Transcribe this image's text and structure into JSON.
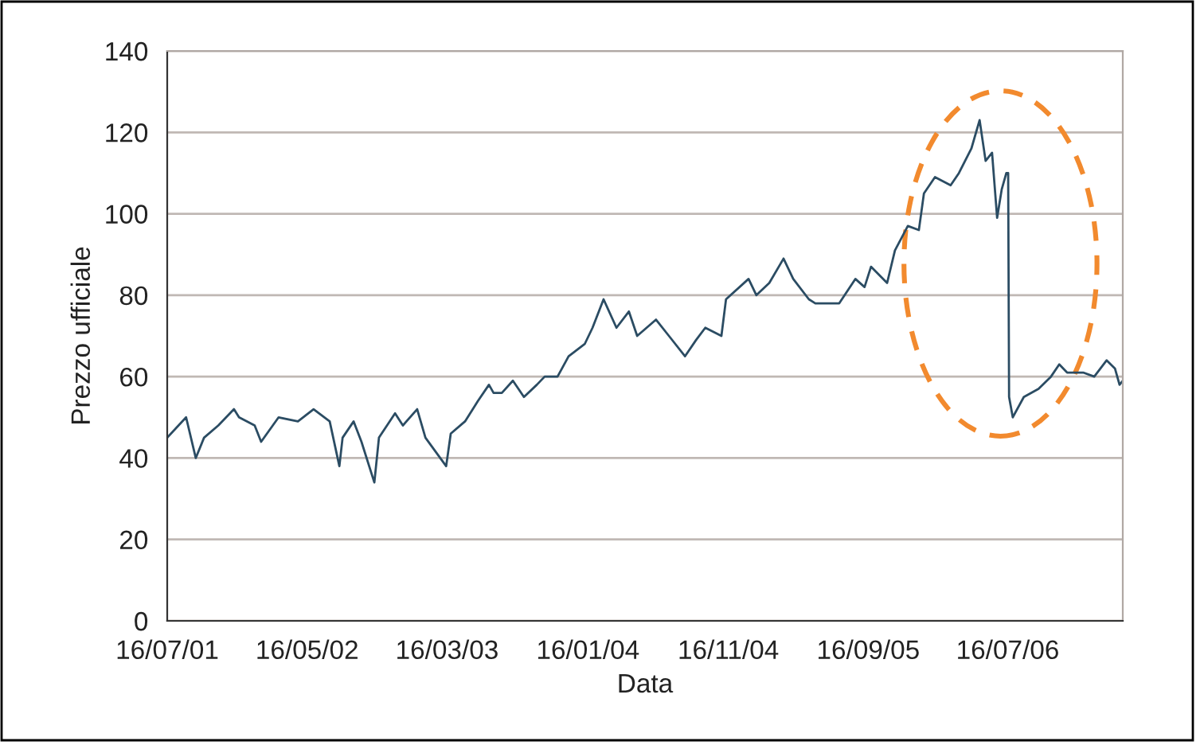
{
  "chart_data": {
    "type": "line",
    "xlabel": "Data",
    "ylabel": "Prezzo ufficiale",
    "x": [
      "2001-07-16",
      "2001-08-26",
      "2001-09-16",
      "2001-10-04",
      "2001-11-04",
      "2001-12-08",
      "2001-12-19",
      "2002-01-22",
      "2002-02-05",
      "2002-03-15",
      "2002-04-26",
      "2002-05-30",
      "2002-07-04",
      "2002-07-25",
      "2002-08-01",
      "2002-08-25",
      "2002-09-11",
      "2002-10-09",
      "2002-10-19",
      "2002-11-23",
      "2002-12-10",
      "2003-01-10",
      "2003-01-28",
      "2003-03-14",
      "2003-03-24",
      "2003-04-24",
      "2003-05-22",
      "2003-06-15",
      "2003-06-25",
      "2003-07-13",
      "2003-08-06",
      "2003-08-30",
      "2003-09-27",
      "2003-10-14",
      "2003-11-11",
      "2003-12-05",
      "2004-01-09",
      "2004-01-26",
      "2004-02-19",
      "2004-03-18",
      "2004-04-14",
      "2004-05-02",
      "2004-06-12",
      "2004-07-10",
      "2004-08-14",
      "2004-09-07",
      "2004-09-27",
      "2004-11-01",
      "2004-11-11",
      "2004-12-30",
      "2005-01-16",
      "2005-02-13",
      "2005-03-16",
      "2005-04-06",
      "2005-05-10",
      "2005-05-24",
      "2005-07-15",
      "2005-08-19",
      "2005-09-08",
      "2005-09-22",
      "2005-10-27",
      "2005-11-13",
      "2005-12-11",
      "2006-01-04",
      "2006-01-15",
      "2006-02-08",
      "2006-03-14",
      "2006-04-01",
      "2006-04-28",
      "2006-05-16",
      "2006-05-29",
      "2006-06-12",
      "2006-06-23",
      "2006-07-03",
      "2006-07-13",
      "2006-07-17",
      "2006-07-19",
      "2006-07-27",
      "2006-08-20",
      "2006-09-21",
      "2006-10-18",
      "2006-11-05",
      "2006-11-22",
      "2006-12-27",
      "2007-01-20",
      "2007-02-16",
      "2007-03-06",
      "2007-03-16",
      "2007-03-23"
    ],
    "series": [
      {
        "color": "#2b4c63",
        "values": [
          45,
          50,
          40,
          45,
          48,
          52,
          50,
          48,
          44,
          50,
          49,
          52,
          49,
          38,
          45,
          49,
          44,
          34,
          45,
          51,
          48,
          52,
          45,
          38,
          46,
          49,
          54,
          58,
          56,
          56,
          59,
          55,
          58,
          60,
          60,
          65,
          68,
          72,
          79,
          72,
          76,
          70,
          74,
          70,
          65,
          69,
          72,
          70,
          79,
          84,
          80,
          83,
          89,
          84,
          79,
          78,
          78,
          84,
          82,
          87,
          83,
          91,
          97,
          96,
          105,
          109,
          107,
          110,
          116,
          123,
          113,
          115,
          99,
          106,
          110,
          110,
          55,
          50,
          55,
          57,
          60,
          63,
          61,
          61,
          60,
          64,
          62,
          58,
          59
        ]
      }
    ],
    "xlim": [
      "2001-07-16",
      "2007-03-23"
    ],
    "xticks": [
      {
        "value": "2001-07-16",
        "label": "16/07/01"
      },
      {
        "value": "2002-05-16",
        "label": "16/05/02"
      },
      {
        "value": "2003-03-16",
        "label": "16/03/03"
      },
      {
        "value": "2004-01-16",
        "label": "16/01/04"
      },
      {
        "value": "2004-11-16",
        "label": "16/11/04"
      },
      {
        "value": "2005-09-16",
        "label": "16/09/05"
      },
      {
        "value": "2006-07-16",
        "label": "16/07/06"
      }
    ],
    "ylim": [
      0,
      140
    ],
    "yticks": [
      0,
      20,
      40,
      60,
      80,
      100,
      120,
      140
    ],
    "grid": "y",
    "marker": "none",
    "line_style": "solid"
  }
}
